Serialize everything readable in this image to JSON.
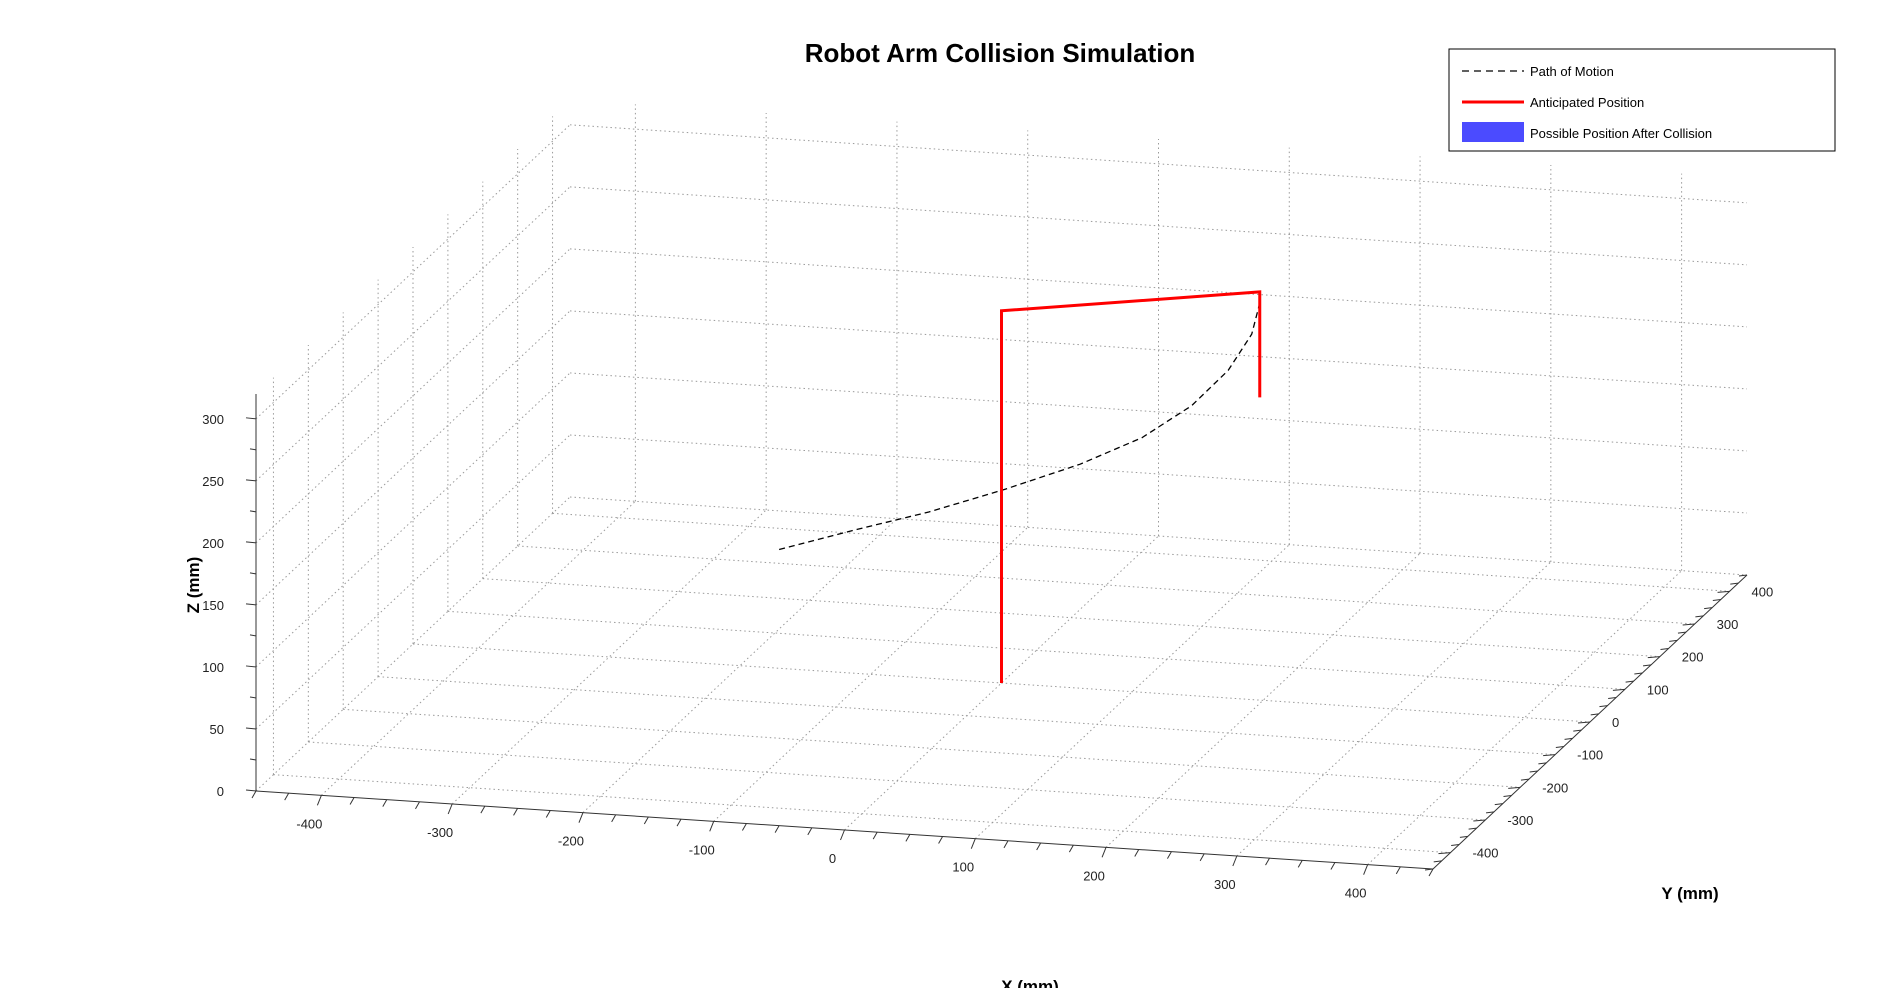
{
  "chart_data": {
    "type": "line",
    "title": "Robot Arm Collision Simulation",
    "xlabel": "X (mm)",
    "ylabel": "Y (mm)",
    "zlabel": "Z (mm)",
    "xlim": [
      -450,
      450
    ],
    "ylim": [
      -450,
      450
    ],
    "zlim": [
      0,
      320
    ],
    "xticks": [
      -400,
      -300,
      -200,
      -100,
      0,
      100,
      200,
      300,
      400
    ],
    "yticks": [
      -400,
      -300,
      -200,
      -100,
      0,
      100,
      200,
      300,
      400
    ],
    "zticks": [
      0,
      50,
      100,
      150,
      200,
      250,
      300
    ],
    "grid": true,
    "legend_position": "top-right",
    "series": [
      {
        "name": "Path of Motion",
        "style": "dashed",
        "color": "#000000",
        "points": [
          [
            -130,
            -150,
            138
          ],
          [
            -80,
            -123,
            150
          ],
          [
            -30,
            -96,
            161
          ],
          [
            20,
            -67,
            175
          ],
          [
            70,
            -37,
            191
          ],
          [
            110,
            -10,
            208
          ],
          [
            140,
            20,
            228
          ],
          [
            160,
            50,
            250
          ],
          [
            170,
            80,
            272
          ],
          [
            170,
            103,
            291
          ]
        ]
      },
      {
        "name": "Anticipated Position",
        "style": "solid",
        "color": "#ff0000",
        "points": [
          [
            0,
            0,
            0
          ],
          [
            0,
            0,
            300
          ],
          [
            170,
            103,
            300
          ],
          [
            170,
            103,
            215
          ]
        ]
      },
      {
        "name": "Possible Position After Collision",
        "style": "patch",
        "color": "#4b4bff",
        "points": []
      }
    ]
  }
}
